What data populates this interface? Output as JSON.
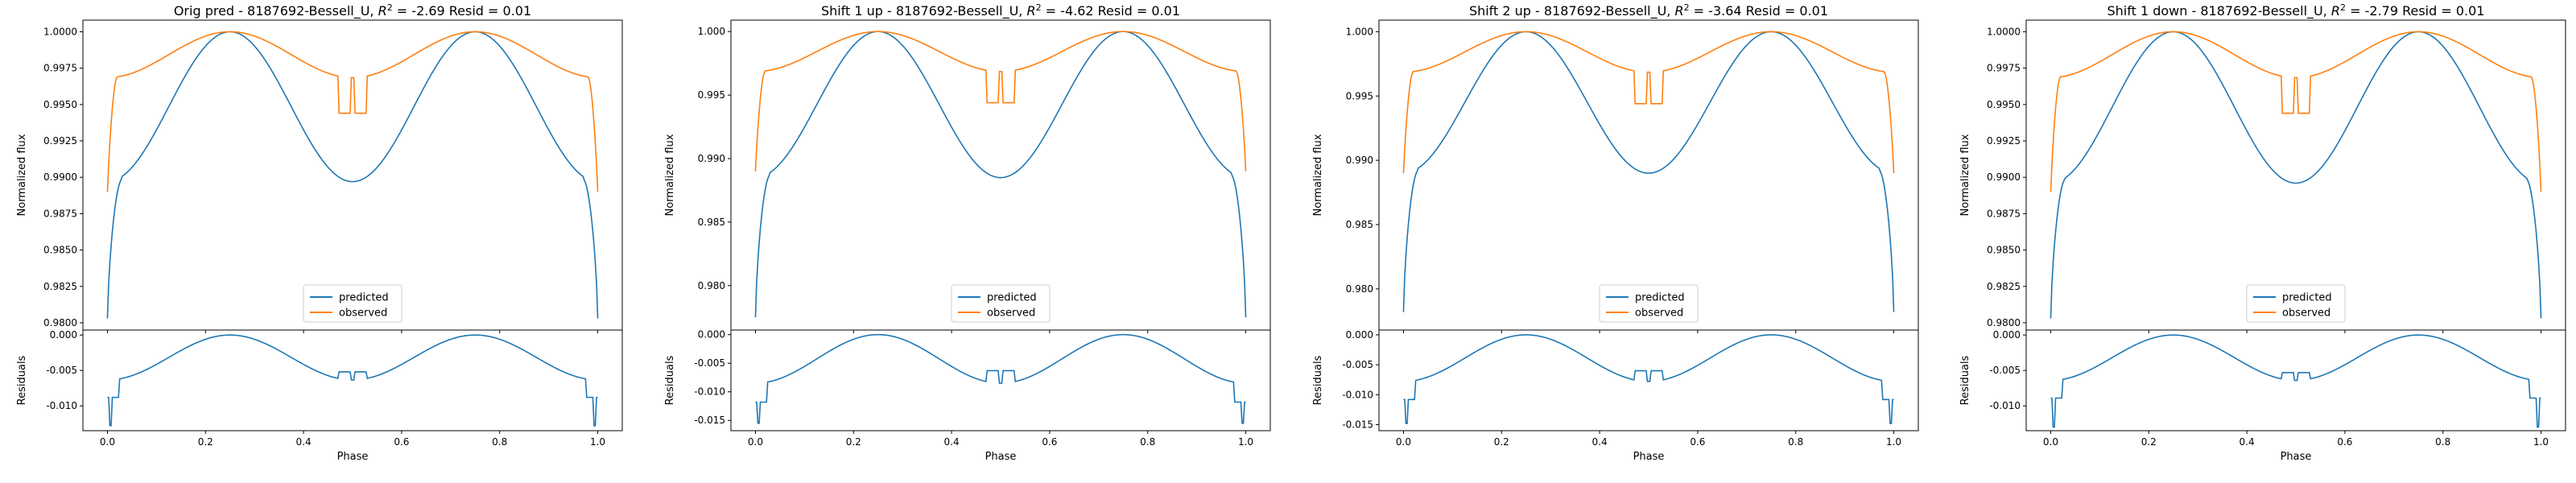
{
  "colors": {
    "predicted": "#1f77b4",
    "observed": "#ff7f0e"
  },
  "chart_data": [
    {
      "type": "line",
      "title": "Orig pred - 8187692-Bessell_U, $R^2$ = -2.69 Resid = 0.01",
      "title_parts": {
        "pre": "Orig pred - 8187692-Bessell_U, ",
        "r": "R",
        "sup": "2",
        "post": " = -2.69 Resid = 0.01"
      },
      "ylabel": "Normalized flux",
      "xlabel": "Phase",
      "resid_ylabel": "Residuals",
      "xlim": [
        -0.05,
        1.05
      ],
      "x_ticks": [
        "0.0",
        "0.2",
        "0.4",
        "0.6",
        "0.8",
        "1.0"
      ],
      "ylim": [
        0.9795,
        1.0008
      ],
      "y_ticks": [
        "0.9800",
        "0.9825",
        "0.9850",
        "0.9875",
        "0.9900",
        "0.9925",
        "0.9950",
        "0.9975",
        "1.0000"
      ],
      "resid_ylim": [
        -0.0135,
        0.0007
      ],
      "resid_ticks": [
        "0.000",
        "-0.005",
        "-0.010"
      ],
      "legend": {
        "position": "lower center",
        "entries": [
          "predicted",
          "observed"
        ]
      },
      "series": [
        {
          "name": "predicted",
          "min": 0.9803,
          "plateau_low": 0.9895,
          "mid_min": 0.9897
        },
        {
          "name": "observed",
          "min": 0.989,
          "plateau_low": 0.9958,
          "notch": 0.9944
        }
      ],
      "residuals": {
        "edge": -0.0088,
        "notch": -0.0052,
        "spike": -0.0128
      }
    },
    {
      "type": "line",
      "title": "Shift 1 up - 8187692-Bessell_U, $R^2$ = -4.62 Resid = 0.01",
      "title_parts": {
        "pre": "Shift 1 up - 8187692-Bessell_U, ",
        "r": "R",
        "sup": "2",
        "post": " = -4.62 Resid = 0.01"
      },
      "ylabel": "Normalized flux",
      "xlabel": "Phase",
      "resid_ylabel": "Residuals",
      "xlim": [
        -0.05,
        1.05
      ],
      "x_ticks": [
        "0.0",
        "0.2",
        "0.4",
        "0.6",
        "0.8",
        "1.0"
      ],
      "ylim": [
        0.9765,
        1.0009
      ],
      "y_ticks": [
        "0.980",
        "0.985",
        "0.990",
        "0.995",
        "1.000"
      ],
      "resid_ylim": [
        -0.0168,
        0.0008
      ],
      "resid_ticks": [
        "0.000",
        "-0.005",
        "-0.010",
        "-0.015"
      ],
      "legend": {
        "position": "lower center",
        "entries": [
          "predicted",
          "observed"
        ]
      },
      "series": [
        {
          "name": "predicted",
          "min": 0.9775,
          "plateau_low": 0.9883,
          "mid_min": 0.9885
        },
        {
          "name": "observed",
          "min": 0.989,
          "plateau_low": 0.9958,
          "notch": 0.9944
        }
      ],
      "residuals": {
        "edge": -0.0118,
        "notch": -0.0063,
        "spike": -0.0155
      }
    },
    {
      "type": "line",
      "title": "Shift 2 up - 8187692-Bessell_U, $R^2$ = -3.64 Resid = 0.01",
      "title_parts": {
        "pre": "Shift 2 up - 8187692-Bessell_U, ",
        "r": "R",
        "sup": "2",
        "post": " = -3.64 Resid = 0.01"
      },
      "ylabel": "Normalized flux",
      "xlabel": "Phase",
      "resid_ylabel": "Residuals",
      "xlim": [
        -0.05,
        1.05
      ],
      "x_ticks": [
        "0.0",
        "0.2",
        "0.4",
        "0.6",
        "0.8",
        "1.0"
      ],
      "ylim": [
        0.9768,
        1.0009
      ],
      "y_ticks": [
        "0.980",
        "0.985",
        "0.990",
        "0.995",
        "1.000"
      ],
      "resid_ylim": [
        -0.016,
        0.0008
      ],
      "resid_ticks": [
        "0.000",
        "-0.005",
        "-0.010",
        "-0.015"
      ],
      "legend": {
        "position": "lower center",
        "entries": [
          "predicted",
          "observed"
        ]
      },
      "series": [
        {
          "name": "predicted",
          "min": 0.9782,
          "plateau_low": 0.9888,
          "mid_min": 0.989
        },
        {
          "name": "observed",
          "min": 0.989,
          "plateau_low": 0.9958,
          "notch": 0.9944
        }
      ],
      "residuals": {
        "edge": -0.0108,
        "notch": -0.006,
        "spike": -0.0148
      }
    },
    {
      "type": "line",
      "title": "Shift 1 down - 8187692-Bessell_U, $R^2$ = -2.79 Resid = 0.01",
      "title_parts": {
        "pre": "Shift 1 down - 8187692-Bessell_U, ",
        "r": "R",
        "sup": "2",
        "post": " = -2.79 Resid = 0.01"
      },
      "ylabel": "Normalized flux",
      "xlabel": "Phase",
      "resid_ylabel": "Residuals",
      "xlim": [
        -0.05,
        1.05
      ],
      "x_ticks": [
        "0.0",
        "0.2",
        "0.4",
        "0.6",
        "0.8",
        "1.0"
      ],
      "ylim": [
        0.9795,
        1.0008
      ],
      "y_ticks": [
        "0.9800",
        "0.9825",
        "0.9850",
        "0.9875",
        "0.9900",
        "0.9925",
        "0.9950",
        "0.9975",
        "1.0000"
      ],
      "resid_ylim": [
        -0.0135,
        0.0007
      ],
      "resid_ticks": [
        "0.000",
        "-0.005",
        "-0.010"
      ],
      "legend": {
        "position": "lower center",
        "entries": [
          "predicted",
          "observed"
        ]
      },
      "series": [
        {
          "name": "predicted",
          "min": 0.9803,
          "plateau_low": 0.9895,
          "mid_min": 0.9896
        },
        {
          "name": "observed",
          "min": 0.989,
          "plateau_low": 0.9958,
          "notch": 0.9944
        }
      ],
      "residuals": {
        "edge": -0.0089,
        "notch": -0.0053,
        "spike": -0.013
      }
    }
  ]
}
